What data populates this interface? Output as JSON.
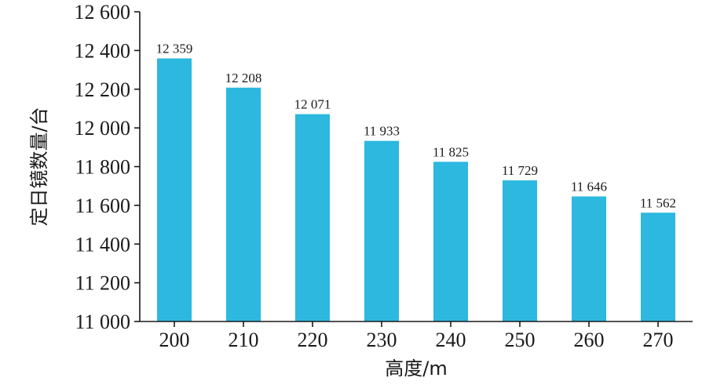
{
  "chart_data": {
    "type": "bar",
    "categories": [
      "200",
      "210",
      "220",
      "230",
      "240",
      "250",
      "260",
      "270"
    ],
    "values": [
      12359,
      12208,
      12071,
      11933,
      11825,
      11729,
      11646,
      11562
    ],
    "value_labels": [
      "12 359",
      "12 208",
      "12 071",
      "11 933",
      "11 825",
      "11 729",
      "11 646",
      "11 562"
    ],
    "xlabel": "高度/m",
    "ylabel": "定日镜数量/台",
    "ylim": [
      11000,
      12600
    ],
    "y_ticks": [
      11000,
      11200,
      11400,
      11600,
      11800,
      12000,
      12200,
      12400,
      12600
    ],
    "y_tick_labels": [
      "11 000",
      "11 200",
      "11 400",
      "11 600",
      "11 800",
      "12 000",
      "12 200",
      "12 400",
      "12 600"
    ],
    "bar_color": "#2cb8df",
    "grid": false,
    "legend": "none"
  }
}
